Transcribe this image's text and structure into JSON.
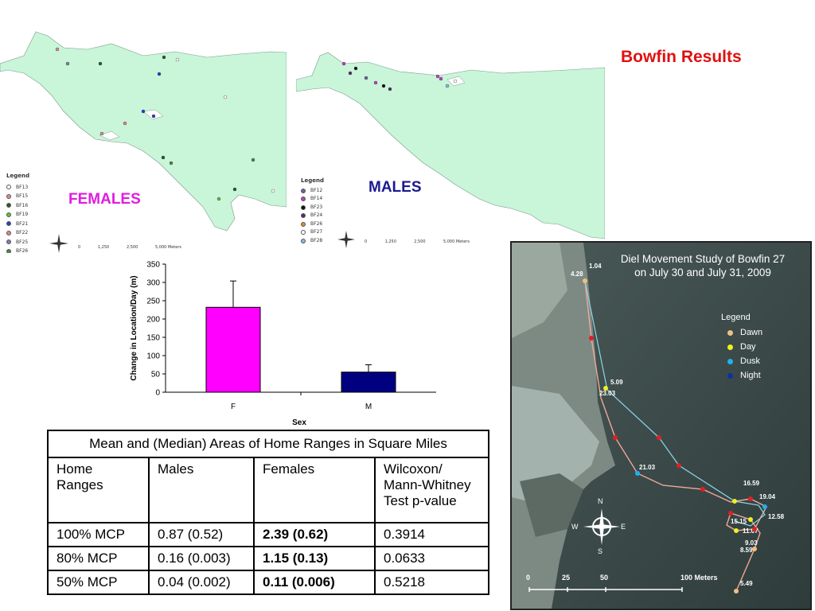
{
  "slide_title": "Bowfin Results",
  "female_map": {
    "label": "FEMALES",
    "legend_title": "Legend",
    "legend": [
      {
        "name": "BF13",
        "color": "#ffffff"
      },
      {
        "name": "BF15",
        "color": "#d88a9a"
      },
      {
        "name": "BF16",
        "color": "#2a5a2a"
      },
      {
        "name": "BF19",
        "color": "#5cc040"
      },
      {
        "name": "BF21",
        "color": "#2a3ad0"
      },
      {
        "name": "BF22",
        "color": "#e88090"
      },
      {
        "name": "BF25",
        "color": "#8a7aa8"
      },
      {
        "name": "BF26",
        "color": "#4a8a3a"
      }
    ],
    "scale": [
      "0",
      "1,250",
      "2,500",
      "5,000 Meters"
    ]
  },
  "male_map": {
    "label": "MALES",
    "legend_title": "Legend",
    "legend": [
      {
        "name": "BF12",
        "color": "#7060a0"
      },
      {
        "name": "BF14",
        "color": "#c040c0"
      },
      {
        "name": "BF23",
        "color": "#111111"
      },
      {
        "name": "BF24",
        "color": "#5a2a6a"
      },
      {
        "name": "BF26",
        "color": "#d89030"
      },
      {
        "name": "BF27",
        "color": "#ffffff"
      },
      {
        "name": "BF28",
        "color": "#80c0e0"
      }
    ],
    "scale": [
      "0",
      "1,250",
      "2,500",
      "5,000 Meters"
    ]
  },
  "chart_data": {
    "type": "bar",
    "categories": [
      "F",
      "M"
    ],
    "values": [
      232,
      55
    ],
    "errors": [
      72,
      20
    ],
    "bar_colors": [
      "#ff00ff",
      "#000080"
    ],
    "xlabel": "Sex",
    "ylabel": "Change in Location/Day (m)",
    "ylim": [
      0,
      350
    ],
    "yticks": [
      0,
      50,
      100,
      150,
      200,
      250,
      300,
      350
    ],
    "grid": false
  },
  "table": {
    "caption": "Mean and (Median) Areas of Home Ranges in Square Miles",
    "headers": [
      "Home Ranges",
      "Males",
      "Females",
      "Wilcoxon/ Mann-Whitney Test p-value"
    ],
    "rows": [
      [
        "100% MCP",
        "0.87 (0.52)",
        "2.39 (0.62)",
        "0.3914"
      ],
      [
        "80% MCP",
        "0.16 (0.003)",
        "1.15 (0.13)",
        "0.0633"
      ],
      [
        "50% MCP",
        "0.04 (0.002)",
        "0.11 (0.006)",
        "0.5218"
      ]
    ]
  },
  "photo": {
    "title_line1": "Diel Movement Study of Bowfin 27",
    "title_line2": "on July 30 and July 31, 2009",
    "legend_title": "Legend",
    "legend": [
      {
        "name": "Dawn",
        "color": "#f0c080"
      },
      {
        "name": "Day",
        "color": "#f0f020"
      },
      {
        "name": "Dusk",
        "color": "#20b0f0"
      },
      {
        "name": "Night",
        "color": "#1030a0"
      }
    ],
    "point_labels": [
      "1.04",
      "4.28",
      "5.09",
      "23.03",
      "21.03",
      "16.59",
      "19.04",
      "12.58",
      "15.15",
      "11.07",
      "9.03",
      "8.59",
      "5.49"
    ],
    "scale": [
      "0",
      "25",
      "50",
      "100 Meters"
    ],
    "compass": [
      "N",
      "E",
      "S",
      "W"
    ]
  }
}
